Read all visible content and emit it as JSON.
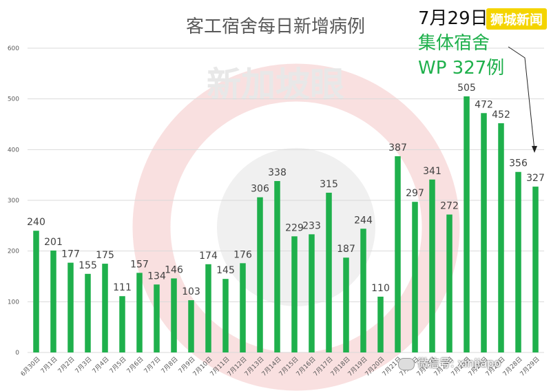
{
  "chart_data": {
    "type": "bar",
    "title": "客工宿舍每日新增病例",
    "xlabel": "",
    "ylabel": "",
    "ylim": [
      0,
      600
    ],
    "yticks": [
      0,
      100,
      200,
      300,
      400,
      500,
      600
    ],
    "grid": true,
    "categories": [
      "6月30日",
      "7月1日",
      "7月2日",
      "7月3日",
      "7月4日",
      "7月5日",
      "7月6日",
      "7月7日",
      "7月8日",
      "7月9日",
      "7月10日",
      "7月11日",
      "7月12日",
      "7月13日",
      "7月14日",
      "7月15日",
      "7月16日",
      "7月17日",
      "7月18日",
      "7月19日",
      "7月20日",
      "7月21日",
      "7月22日",
      "7月23日",
      "7月24日",
      "7月25日",
      "7月26日",
      "7月27日",
      "7月28日",
      "7月29日"
    ],
    "values": [
      240,
      201,
      177,
      155,
      175,
      111,
      157,
      134,
      146,
      103,
      174,
      145,
      176,
      306,
      338,
      229,
      233,
      315,
      187,
      244,
      110,
      387,
      297,
      341,
      272,
      505,
      472,
      452,
      356,
      327
    ],
    "bar_color": "#1fb04c"
  },
  "annotation": {
    "date": "7月29日",
    "line1": "集体宿舍",
    "line2": "WP 327例",
    "color": "#1fb04c"
  },
  "watermarks": {
    "center_text": "新加坡眼",
    "top_right_badge": "狮城新闻",
    "bottom_right": "微信号: xinjiapo"
  }
}
